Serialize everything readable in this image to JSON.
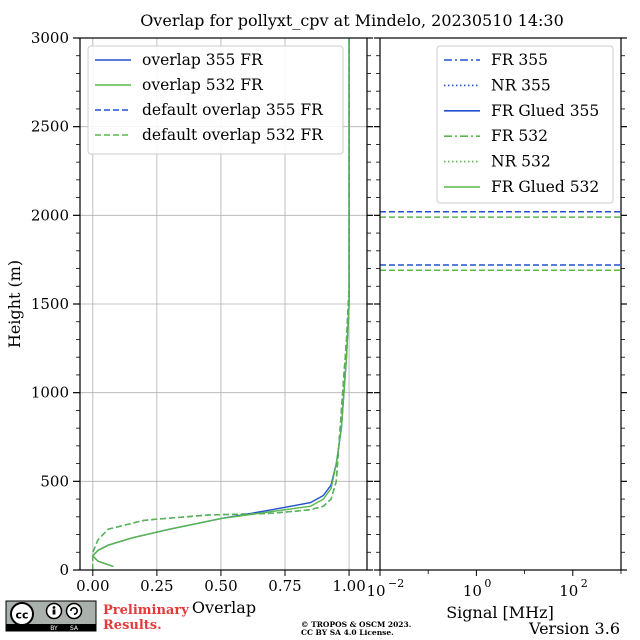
{
  "title": "Overlap for pollyxt_cpv at Mindelo, 20230510 14:30",
  "colors": {
    "blue": "#2050d0",
    "green": "#5ab84a",
    "grid": "#b0b0b0"
  },
  "version": "Version 3.6",
  "copyright": [
    "© TROPOS & OSCM 2023.",
    "CC BY SA 4.0 License."
  ],
  "preliminary": [
    "Preliminary",
    "Results."
  ],
  "cc_badge": {
    "icon": "cc-by-sa-license-icon",
    "labels": [
      "BY",
      "SA"
    ]
  },
  "chart_data": [
    {
      "type": "line",
      "xlabel": "Overlap",
      "ylabel": "Height (m)",
      "xlim": [
        -0.05,
        1.07
      ],
      "ylim": [
        0,
        3000
      ],
      "xticks": [
        0.0,
        0.25,
        0.5,
        0.75,
        1.0
      ],
      "xtick_labels": [
        "0.00",
        "0.25",
        "0.50",
        "0.75",
        "1.00"
      ],
      "yticks": [
        0,
        500,
        1000,
        1500,
        2000,
        2500,
        3000
      ],
      "ytick_labels": [
        "0",
        "500",
        "1000",
        "1500",
        "2000",
        "2500",
        "3000"
      ],
      "grid": true,
      "legend": "top-right",
      "series": [
        {
          "name": "overlap 355 FR",
          "color": "#2050d0",
          "style": "solid",
          "x": [
            0.08,
            0.02,
            0.0,
            0.02,
            0.06,
            0.15,
            0.3,
            0.5,
            0.7,
            0.85,
            0.9,
            0.93,
            0.95,
            0.97,
            0.98,
            0.99,
            1.0,
            1.0,
            1.0,
            1.0,
            1.0,
            1.0,
            1.0
          ],
          "y": [
            20,
            50,
            80,
            110,
            140,
            180,
            230,
            290,
            340,
            380,
            420,
            480,
            600,
            800,
            1000,
            1200,
            1500,
            1800,
            2100,
            2400,
            2700,
            2900,
            3000
          ]
        },
        {
          "name": "overlap 532 FR",
          "color": "#5ab84a",
          "style": "solid",
          "x": [
            0.08,
            0.02,
            0.0,
            0.02,
            0.06,
            0.15,
            0.3,
            0.5,
            0.7,
            0.85,
            0.9,
            0.93,
            0.95,
            0.97,
            0.98,
            0.99,
            1.0,
            1.0,
            1.0,
            1.0,
            1.0,
            1.0,
            1.0
          ],
          "y": [
            20,
            50,
            80,
            110,
            140,
            180,
            230,
            290,
            330,
            360,
            400,
            460,
            600,
            800,
            1000,
            1200,
            1500,
            1800,
            2100,
            2400,
            2700,
            2900,
            3000
          ]
        },
        {
          "name": "default overlap 355 FR",
          "color": "#2050d0",
          "style": "dashed",
          "x": [
            0.0,
            0.0,
            0.02,
            0.06,
            0.2,
            0.45,
            0.7,
            0.85,
            0.9,
            0.93,
            0.95,
            0.96,
            0.97,
            0.98,
            0.99,
            1.0,
            1.0,
            1.0,
            1.0,
            1.0,
            1.0
          ],
          "y": [
            0,
            100,
            170,
            230,
            280,
            310,
            320,
            340,
            360,
            400,
            500,
            700,
            900,
            1100,
            1300,
            1600,
            1900,
            2200,
            2500,
            2800,
            3000
          ]
        },
        {
          "name": "default overlap 532 FR",
          "color": "#5ab84a",
          "style": "dashed",
          "x": [
            0.0,
            0.0,
            0.02,
            0.06,
            0.2,
            0.45,
            0.7,
            0.85,
            0.9,
            0.93,
            0.95,
            0.96,
            0.97,
            0.98,
            0.99,
            1.0,
            1.0,
            1.0,
            1.0,
            1.0,
            1.0
          ],
          "y": [
            0,
            100,
            170,
            230,
            280,
            310,
            320,
            340,
            360,
            400,
            500,
            700,
            900,
            1100,
            1300,
            1600,
            1900,
            2200,
            2500,
            2800,
            3000
          ]
        }
      ]
    },
    {
      "type": "line",
      "xlabel": "Signal [MHz]",
      "xscale": "log",
      "xlim": [
        0.01,
        1000
      ],
      "xticks": [
        0.01,
        1,
        100
      ],
      "xtick_labels": [
        "10",
        "10",
        "10"
      ],
      "xtick_exponents": [
        "−2",
        "0",
        "2"
      ],
      "ylim": [
        0,
        3000
      ],
      "legend": "top-right",
      "series": [
        {
          "name": "FR 355",
          "color": "#2050d0",
          "style": "dashdot",
          "x": [],
          "y": []
        },
        {
          "name": "NR 355",
          "color": "#2050d0",
          "style": "dotted",
          "x": [],
          "y": []
        },
        {
          "name": "FR Glued 355",
          "color": "#2050d0",
          "style": "solid",
          "x": [],
          "y": []
        },
        {
          "name": "FR 532",
          "color": "#5ab84a",
          "style": "dashdot",
          "x": [],
          "y": []
        },
        {
          "name": "NR 532",
          "color": "#5ab84a",
          "style": "dotted",
          "x": [],
          "y": []
        },
        {
          "name": "FR Glued 532",
          "color": "#5ab84a",
          "style": "solid",
          "x": [],
          "y": []
        }
      ],
      "hlines": [
        {
          "y": 2020,
          "color": "#2050d0",
          "style": "dashed"
        },
        {
          "y": 1990,
          "color": "#5ab84a",
          "style": "dashed"
        },
        {
          "y": 1720,
          "color": "#2050d0",
          "style": "dashed"
        },
        {
          "y": 1690,
          "color": "#5ab84a",
          "style": "dashed"
        }
      ]
    }
  ]
}
